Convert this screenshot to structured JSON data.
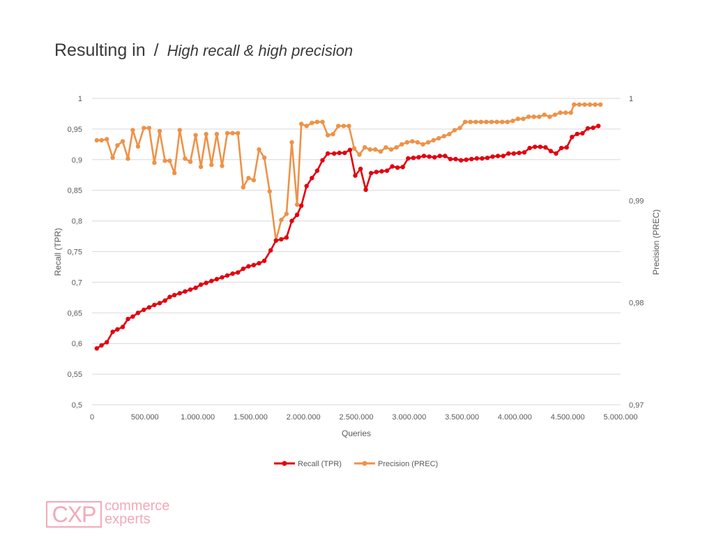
{
  "slide": {
    "title_main": "Resulting in",
    "title_sep": "/",
    "title_sub": "High recall & high precision"
  },
  "logo": {
    "mark": "CXP",
    "line1": "commerce",
    "line2": "experts"
  },
  "colors": {
    "recall": "#e3000f",
    "precision": "#ee9248",
    "grid": "#d9d9d9",
    "axis_text": "#595959"
  },
  "chart_data": {
    "type": "line",
    "xlabel": "Queries",
    "ylabel": "Recall (TPR)",
    "y2label": "Precision (PREC)",
    "xlim": [
      0,
      5000000
    ],
    "ylim": [
      0.5,
      1
    ],
    "y2lim": [
      0.97,
      1
    ],
    "xticks": [
      0,
      500000,
      1000000,
      1500000,
      2000000,
      2500000,
      3000000,
      3500000,
      4000000,
      4500000,
      5000000
    ],
    "xtick_labels": [
      "0",
      "500.000",
      "1.000.000",
      "1.500.000",
      "2.000.000",
      "2.500.000",
      "3.000.000",
      "3.500.000",
      "4.000.000",
      "4.500.000",
      "5.000.000"
    ],
    "yticks": [
      0.5,
      0.55,
      0.6,
      0.65,
      0.7,
      0.75,
      0.8,
      0.85,
      0.9,
      0.95,
      1
    ],
    "ytick_labels": [
      "0,5",
      "0,55",
      "0,6",
      "0,65",
      "0,7",
      "0,75",
      "0,8",
      "0,85",
      "0,9",
      "0,95",
      "1"
    ],
    "y2ticks": [
      0.97,
      0.98,
      0.99,
      1
    ],
    "y2tick_labels": [
      "0,97",
      "0,98",
      "0,99",
      "1"
    ],
    "grid": true,
    "legend": "bottom-center",
    "series": [
      {
        "name": "Recall (TPR)",
        "axis": "left",
        "color": "#e3000f",
        "points": [
          [
            45000,
            0.592
          ],
          [
            90000,
            0.597
          ],
          [
            140000,
            0.602
          ],
          [
            195000,
            0.619
          ],
          [
            240000,
            0.623
          ],
          [
            290000,
            0.627
          ],
          [
            340000,
            0.64
          ],
          [
            385000,
            0.644
          ],
          [
            435000,
            0.65
          ],
          [
            490000,
            0.655
          ],
          [
            540000,
            0.659
          ],
          [
            590000,
            0.663
          ],
          [
            640000,
            0.666
          ],
          [
            690000,
            0.67
          ],
          [
            735000,
            0.676
          ],
          [
            780000,
            0.679
          ],
          [
            830000,
            0.682
          ],
          [
            880000,
            0.685
          ],
          [
            930000,
            0.688
          ],
          [
            980000,
            0.691
          ],
          [
            1030000,
            0.696
          ],
          [
            1080000,
            0.699
          ],
          [
            1130000,
            0.702
          ],
          [
            1180000,
            0.705
          ],
          [
            1230000,
            0.708
          ],
          [
            1280000,
            0.711
          ],
          [
            1330000,
            0.714
          ],
          [
            1380000,
            0.716
          ],
          [
            1430000,
            0.722
          ],
          [
            1480000,
            0.726
          ],
          [
            1530000,
            0.728
          ],
          [
            1580000,
            0.731
          ],
          [
            1630000,
            0.735
          ],
          [
            1690000,
            0.752
          ],
          [
            1740000,
            0.768
          ],
          [
            1790000,
            0.77
          ],
          [
            1840000,
            0.773
          ],
          [
            1890000,
            0.8
          ],
          [
            1940000,
            0.81
          ],
          [
            1980000,
            0.825
          ],
          [
            2030000,
            0.857
          ],
          [
            2080000,
            0.87
          ],
          [
            2130000,
            0.882
          ],
          [
            2180000,
            0.899
          ],
          [
            2230000,
            0.91
          ],
          [
            2290000,
            0.91
          ],
          [
            2340000,
            0.911
          ],
          [
            2390000,
            0.911
          ],
          [
            2440000,
            0.916
          ],
          [
            2490000,
            0.874
          ],
          [
            2540000,
            0.885
          ],
          [
            2590000,
            0.851
          ],
          [
            2640000,
            0.878
          ],
          [
            2690000,
            0.88
          ],
          [
            2740000,
            0.881
          ],
          [
            2790000,
            0.882
          ],
          [
            2840000,
            0.889
          ],
          [
            2890000,
            0.887
          ],
          [
            2940000,
            0.888
          ],
          [
            2990000,
            0.902
          ],
          [
            3040000,
            0.903
          ],
          [
            3090000,
            0.904
          ],
          [
            3140000,
            0.906
          ],
          [
            3190000,
            0.905
          ],
          [
            3240000,
            0.904
          ],
          [
            3290000,
            0.906
          ],
          [
            3340000,
            0.906
          ],
          [
            3390000,
            0.901
          ],
          [
            3440000,
            0.901
          ],
          [
            3490000,
            0.899
          ],
          [
            3540000,
            0.9
          ],
          [
            3590000,
            0.901
          ],
          [
            3640000,
            0.902
          ],
          [
            3690000,
            0.902
          ],
          [
            3740000,
            0.903
          ],
          [
            3790000,
            0.905
          ],
          [
            3840000,
            0.906
          ],
          [
            3890000,
            0.906
          ],
          [
            3940000,
            0.91
          ],
          [
            3990000,
            0.91
          ],
          [
            4040000,
            0.911
          ],
          [
            4090000,
            0.912
          ],
          [
            4140000,
            0.919
          ],
          [
            4190000,
            0.921
          ],
          [
            4240000,
            0.921
          ],
          [
            4290000,
            0.92
          ],
          [
            4340000,
            0.914
          ],
          [
            4390000,
            0.91
          ],
          [
            4440000,
            0.919
          ],
          [
            4490000,
            0.92
          ],
          [
            4540000,
            0.937
          ],
          [
            4590000,
            0.942
          ],
          [
            4640000,
            0.943
          ],
          [
            4690000,
            0.951
          ],
          [
            4740000,
            0.952
          ],
          [
            4790000,
            0.955
          ]
        ]
      },
      {
        "name": "Precision (PREC)",
        "axis": "right",
        "color": "#ee9248",
        "points": [
          [
            45000,
            0.9959
          ],
          [
            90000,
            0.9959
          ],
          [
            140000,
            0.996
          ],
          [
            195000,
            0.9942
          ],
          [
            240000,
            0.9954
          ],
          [
            290000,
            0.9958
          ],
          [
            340000,
            0.9941
          ],
          [
            385000,
            0.9969
          ],
          [
            435000,
            0.9953
          ],
          [
            490000,
            0.9971
          ],
          [
            540000,
            0.9971
          ],
          [
            590000,
            0.9937
          ],
          [
            640000,
            0.9968
          ],
          [
            690000,
            0.9939
          ],
          [
            735000,
            0.9939
          ],
          [
            780000,
            0.9927
          ],
          [
            830000,
            0.9969
          ],
          [
            880000,
            0.9941
          ],
          [
            930000,
            0.9938
          ],
          [
            980000,
            0.9964
          ],
          [
            1030000,
            0.9933
          ],
          [
            1080000,
            0.9965
          ],
          [
            1130000,
            0.9935
          ],
          [
            1180000,
            0.9965
          ],
          [
            1230000,
            0.9934
          ],
          [
            1280000,
            0.9966
          ],
          [
            1330000,
            0.9966
          ],
          [
            1380000,
            0.9966
          ],
          [
            1430000,
            0.9913
          ],
          [
            1480000,
            0.9922
          ],
          [
            1530000,
            0.992
          ],
          [
            1580000,
            0.995
          ],
          [
            1630000,
            0.9942
          ],
          [
            1680000,
            0.9909
          ],
          [
            1740000,
            0.9861
          ],
          [
            1790000,
            0.9881
          ],
          [
            1840000,
            0.9887
          ],
          [
            1890000,
            0.9957
          ],
          [
            1940000,
            0.9896
          ],
          [
            1980000,
            0.9975
          ],
          [
            2030000,
            0.9973
          ],
          [
            2080000,
            0.9976
          ],
          [
            2130000,
            0.9977
          ],
          [
            2180000,
            0.9977
          ],
          [
            2230000,
            0.9964
          ],
          [
            2280000,
            0.9965
          ],
          [
            2330000,
            0.9973
          ],
          [
            2380000,
            0.9973
          ],
          [
            2430000,
            0.9973
          ],
          [
            2480000,
            0.9951
          ],
          [
            2530000,
            0.9945
          ],
          [
            2580000,
            0.9952
          ],
          [
            2630000,
            0.995
          ],
          [
            2680000,
            0.995
          ],
          [
            2730000,
            0.9948
          ],
          [
            2780000,
            0.9952
          ],
          [
            2830000,
            0.995
          ],
          [
            2880000,
            0.9952
          ],
          [
            2930000,
            0.9955
          ],
          [
            2980000,
            0.9957
          ],
          [
            3030000,
            0.9958
          ],
          [
            3080000,
            0.9957
          ],
          [
            3130000,
            0.9955
          ],
          [
            3180000,
            0.9957
          ],
          [
            3230000,
            0.9959
          ],
          [
            3280000,
            0.9961
          ],
          [
            3330000,
            0.9963
          ],
          [
            3380000,
            0.9965
          ],
          [
            3430000,
            0.9969
          ],
          [
            3480000,
            0.9971
          ],
          [
            3530000,
            0.9977
          ],
          [
            3580000,
            0.9977
          ],
          [
            3630000,
            0.9977
          ],
          [
            3680000,
            0.9977
          ],
          [
            3730000,
            0.9977
          ],
          [
            3780000,
            0.9977
          ],
          [
            3830000,
            0.9977
          ],
          [
            3880000,
            0.9977
          ],
          [
            3930000,
            0.9977
          ],
          [
            3980000,
            0.9978
          ],
          [
            4030000,
            0.998
          ],
          [
            4080000,
            0.998
          ],
          [
            4130000,
            0.9982
          ],
          [
            4180000,
            0.9982
          ],
          [
            4230000,
            0.9982
          ],
          [
            4280000,
            0.9984
          ],
          [
            4330000,
            0.9982
          ],
          [
            4380000,
            0.9984
          ],
          [
            4430000,
            0.9986
          ],
          [
            4480000,
            0.9986
          ],
          [
            4530000,
            0.9986
          ],
          [
            4560000,
            0.9994
          ],
          [
            4610000,
            0.9994
          ],
          [
            4660000,
            0.9994
          ],
          [
            4710000,
            0.9994
          ],
          [
            4760000,
            0.9994
          ],
          [
            4810000,
            0.9994
          ]
        ]
      }
    ]
  }
}
